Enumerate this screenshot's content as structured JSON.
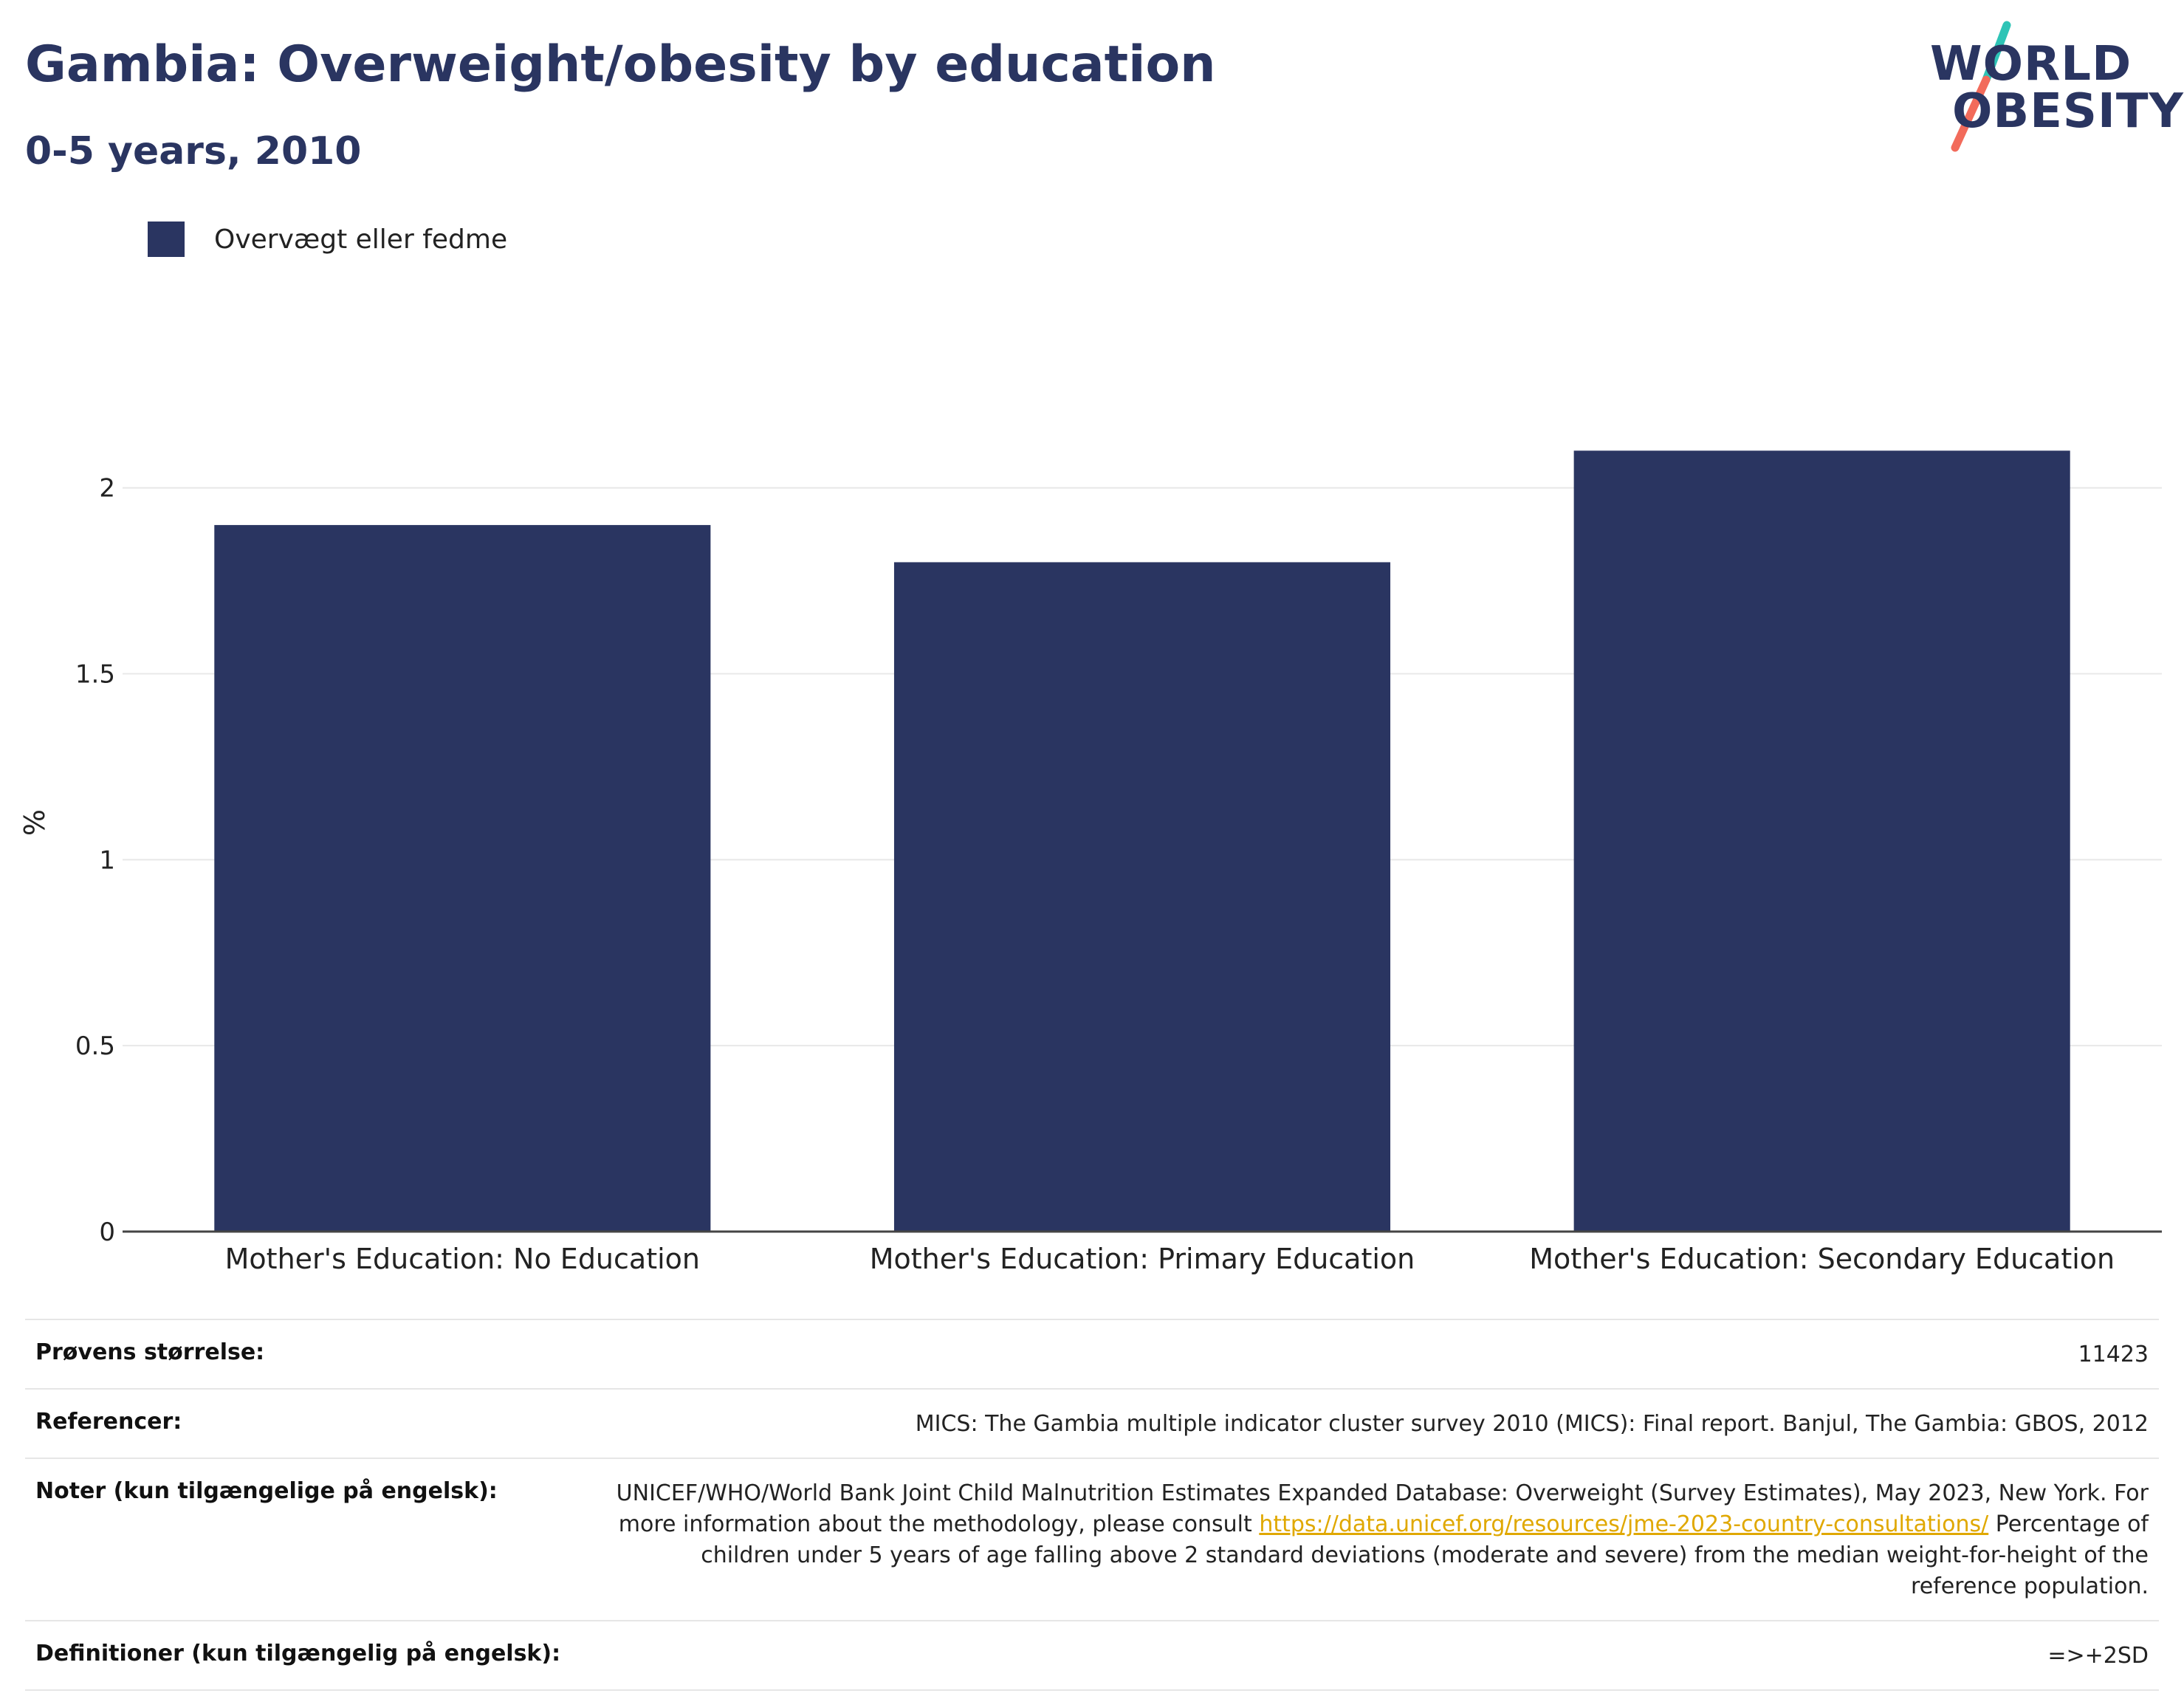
{
  "header": {
    "title": "Gambia: Overweight/obesity by education",
    "subtitle": "0-5 years, 2010"
  },
  "logo": {
    "line1": "WORLD",
    "line2": "OBESITY",
    "colors": {
      "text": "#2a3561",
      "slash_top": "#2ec4b6",
      "slash_bottom": "#f26b5b"
    }
  },
  "chart_data": {
    "type": "bar",
    "categories": [
      "Mother's Education: No Education",
      "Mother's Education: Primary Education",
      "Mother's Education: Secondary Education"
    ],
    "series": [
      {
        "name": "Overvægt eller fedme",
        "values": [
          1.9,
          1.8,
          2.1
        ],
        "color": "#2a3561"
      }
    ],
    "ylabel": "%",
    "ylim": [
      0,
      2.2
    ],
    "yticks": [
      0,
      0.5,
      1,
      1.5,
      2
    ],
    "yticklabels": [
      "0",
      "0.5",
      "1",
      "1.5",
      "2"
    ],
    "grid": true,
    "legend_position": "top-left"
  },
  "meta": {
    "rows": [
      {
        "key": "Prøvens størrelse:",
        "value": "11423"
      },
      {
        "key": "Referencer:",
        "value": "MICS: The Gambia multiple indicator cluster survey 2010 (MICS): Final report. Banjul, The Gambia: GBOS, 2012"
      },
      {
        "key": "Noter (kun tilgængelige på engelsk):",
        "value_before": "UNICEF/WHO/World Bank Joint Child Malnutrition Estimates Expanded Database: Overweight (Survey Estimates), May 2023, New York. For more information about the methodology, please consult ",
        "link": "https://data.unicef.org/resources/jme-2023-country-consultations/",
        "value_after": " Percentage of children under 5 years of age falling above 2 standard deviations (moderate and severe) from the median weight-for-height of the reference population."
      },
      {
        "key": "Definitioner (kun tilgængelig på engelsk):",
        "value": "=>+2SD"
      }
    ]
  }
}
